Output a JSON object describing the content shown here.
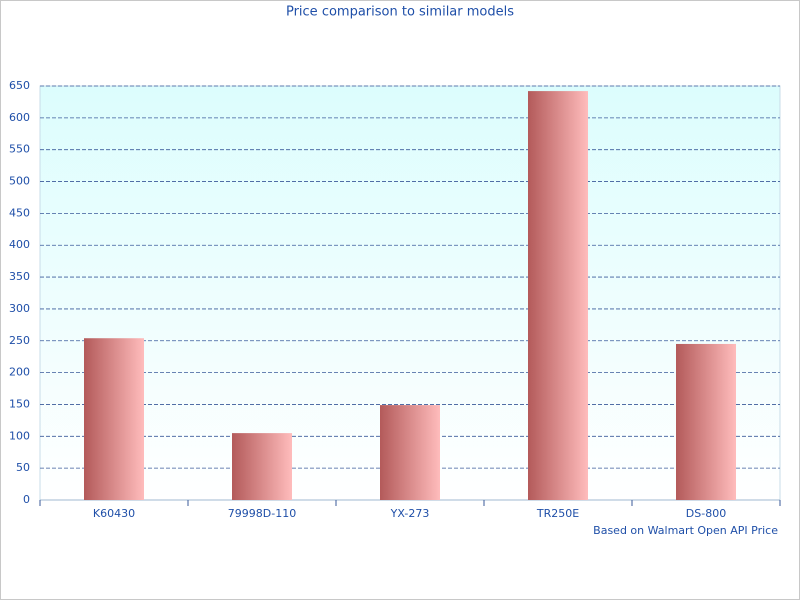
{
  "chart_data": {
    "type": "bar",
    "title": "Price comparison to similar models",
    "footnote": "Based on Walmart Open API Price",
    "categories": [
      "K60430",
      "79998D-110",
      "YX-273",
      "TR250E",
      "DS-800"
    ],
    "values": [
      254,
      105,
      149,
      642,
      245
    ],
    "color": "#b35a5a",
    "ylim": [
      0,
      650
    ],
    "yticks": [
      0,
      50,
      100,
      150,
      200,
      250,
      300,
      350,
      400,
      450,
      500,
      550,
      600,
      650
    ],
    "grid": true
  }
}
